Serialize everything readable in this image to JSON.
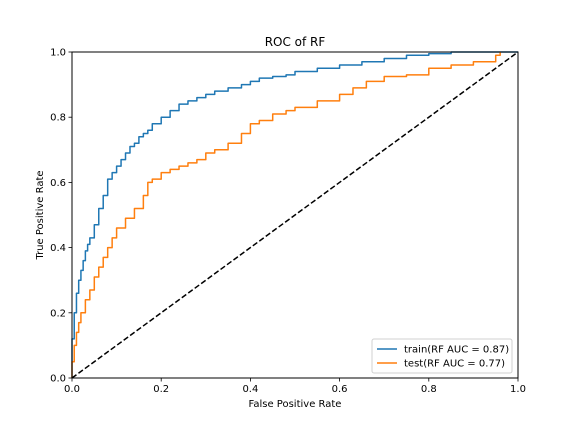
{
  "chart_data": {
    "type": "line",
    "title": "ROC of RF",
    "xlabel": "False Positive Rate",
    "ylabel": "True Positive Rate",
    "xlim": [
      0,
      1
    ],
    "ylim": [
      0,
      1
    ],
    "x_ticks": [
      "0.0",
      "0.2",
      "0.4",
      "0.6",
      "0.8",
      "1.0"
    ],
    "y_ticks": [
      "0.0",
      "0.2",
      "0.4",
      "0.6",
      "0.8",
      "1.0"
    ],
    "grid": false,
    "legend_position": "lower-right",
    "series": [
      {
        "name": "train(RF AUC = 0.87)",
        "color": "#1f77b4",
        "x": [
          0.0,
          0.0,
          0.005,
          0.01,
          0.015,
          0.02,
          0.025,
          0.03,
          0.035,
          0.04,
          0.05,
          0.06,
          0.07,
          0.08,
          0.09,
          0.1,
          0.11,
          0.12,
          0.13,
          0.14,
          0.15,
          0.16,
          0.17,
          0.18,
          0.2,
          0.22,
          0.24,
          0.26,
          0.28,
          0.3,
          0.32,
          0.35,
          0.38,
          0.4,
          0.42,
          0.45,
          0.48,
          0.5,
          0.55,
          0.6,
          0.65,
          0.7,
          0.75,
          0.8,
          0.85,
          0.9,
          0.95,
          1.0
        ],
        "y": [
          0.0,
          0.12,
          0.2,
          0.26,
          0.3,
          0.33,
          0.36,
          0.39,
          0.41,
          0.43,
          0.47,
          0.52,
          0.56,
          0.61,
          0.63,
          0.65,
          0.67,
          0.69,
          0.71,
          0.72,
          0.74,
          0.75,
          0.76,
          0.78,
          0.8,
          0.82,
          0.84,
          0.85,
          0.86,
          0.87,
          0.88,
          0.89,
          0.9,
          0.91,
          0.92,
          0.925,
          0.93,
          0.94,
          0.95,
          0.96,
          0.97,
          0.98,
          0.99,
          0.995,
          1.0,
          1.0,
          1.0,
          1.0
        ]
      },
      {
        "name": "test(RF AUC = 0.77)",
        "color": "#ff7f0e",
        "x": [
          0.0,
          0.0,
          0.005,
          0.01,
          0.015,
          0.02,
          0.03,
          0.04,
          0.05,
          0.06,
          0.07,
          0.08,
          0.09,
          0.1,
          0.12,
          0.14,
          0.16,
          0.17,
          0.18,
          0.2,
          0.22,
          0.24,
          0.26,
          0.28,
          0.3,
          0.32,
          0.35,
          0.38,
          0.4,
          0.42,
          0.45,
          0.48,
          0.5,
          0.55,
          0.6,
          0.63,
          0.66,
          0.7,
          0.75,
          0.8,
          0.85,
          0.9,
          0.95,
          0.96
        ],
        "y": [
          0.0,
          0.05,
          0.1,
          0.14,
          0.17,
          0.2,
          0.24,
          0.27,
          0.31,
          0.34,
          0.37,
          0.4,
          0.43,
          0.46,
          0.49,
          0.52,
          0.56,
          0.6,
          0.61,
          0.63,
          0.64,
          0.65,
          0.66,
          0.67,
          0.69,
          0.7,
          0.72,
          0.75,
          0.78,
          0.79,
          0.81,
          0.82,
          0.83,
          0.85,
          0.87,
          0.89,
          0.91,
          0.925,
          0.93,
          0.95,
          0.96,
          0.97,
          0.99,
          1.0
        ]
      },
      {
        "name": "",
        "color": "#000000",
        "dashed": true,
        "x": [
          0,
          1
        ],
        "y": [
          0,
          1
        ]
      }
    ]
  }
}
